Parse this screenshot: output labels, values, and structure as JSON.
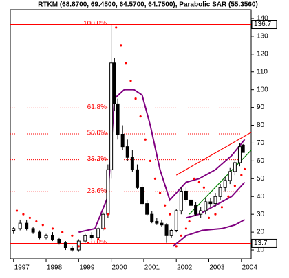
{
  "chart_data": {
    "type": "candlestick",
    "title": "RTKM (68.8700, 69.4500, 64.5700, 64.7500), Parabolic SAR (55.3560)",
    "xlim": [
      1996.9,
      2004.3
    ],
    "xticks": [
      1997,
      1998,
      1999,
      2000,
      2001,
      2002,
      2003,
      2004
    ],
    "ylim": [
      5,
      145
    ],
    "yticks": [
      10,
      20,
      30,
      40,
      50,
      60,
      70,
      80,
      90,
      100,
      110,
      120,
      130,
      140
    ],
    "candles": {
      "x": [
        1997.0,
        1997.2,
        1997.4,
        1997.6,
        1997.8,
        1998.0,
        1998.2,
        1998.4,
        1998.6,
        1998.8,
        1999.0,
        1999.2,
        1999.4,
        1999.6,
        1999.75,
        1999.9,
        2000.0,
        2000.1,
        2000.2,
        2000.35,
        2000.5,
        2000.65,
        2000.8,
        2000.95,
        2001.1,
        2001.25,
        2001.4,
        2001.55,
        2001.7,
        2001.85,
        2002.0,
        2002.15,
        2002.3,
        2002.45,
        2002.6,
        2002.75,
        2002.9,
        2003.05,
        2003.2,
        2003.35,
        2003.5,
        2003.65,
        2003.8,
        2003.95,
        2004.05
      ],
      "open": [
        21,
        22,
        25,
        22,
        20,
        17,
        18,
        16,
        14,
        11,
        10,
        15,
        18,
        17,
        22,
        30,
        55,
        115,
        92,
        75,
        68,
        62,
        55,
        45,
        36,
        30,
        26,
        25,
        24,
        18,
        21,
        32,
        43,
        38,
        35,
        30,
        32,
        37,
        36,
        40,
        45,
        49,
        54,
        59,
        68.87
      ],
      "high": [
        23,
        27,
        27,
        23,
        21,
        19,
        20,
        17,
        15,
        12,
        16,
        19,
        20,
        23,
        31,
        58,
        136.7,
        118,
        95,
        80,
        72,
        66,
        58,
        47,
        38,
        32,
        28,
        27,
        25,
        22,
        33,
        45,
        45,
        40,
        37,
        34,
        39,
        39,
        42,
        47,
        51,
        56,
        61,
        70,
        69.45
      ],
      "low": [
        19,
        21,
        21,
        19,
        16,
        16,
        15,
        13,
        10,
        9,
        9,
        14,
        16,
        16,
        21,
        28,
        50,
        88,
        72,
        66,
        60,
        54,
        44,
        34,
        29,
        25,
        24,
        23,
        14,
        17,
        20,
        30,
        37,
        34,
        29,
        28,
        30,
        34,
        34,
        38,
        43,
        47,
        52,
        57,
        64.57
      ],
      "close": [
        22,
        25,
        22,
        20,
        17,
        18,
        16,
        14,
        11,
        10,
        15,
        18,
        17,
        22,
        30,
        55,
        115,
        92,
        75,
        68,
        62,
        55,
        45,
        36,
        30,
        26,
        25,
        24,
        18,
        21,
        32,
        43,
        38,
        35,
        30,
        32,
        37,
        36,
        40,
        45,
        49,
        54,
        59,
        68,
        64.75
      ]
    },
    "sar": {
      "name": "Parabolic SAR",
      "color": "#ff0000",
      "x": [
        1997.1,
        1997.3,
        1997.5,
        1997.7,
        1997.9,
        1998.2,
        1998.5,
        1998.8,
        1999.0,
        1999.3,
        1999.6,
        1999.8,
        1999.9,
        2000.15,
        2000.3,
        2000.45,
        2000.6,
        2000.75,
        2000.9,
        2001.05,
        2001.2,
        2001.35,
        2001.5,
        2001.65,
        2001.8,
        2002.0,
        2002.15,
        2002.3,
        2002.4,
        2002.55,
        2002.7,
        2002.85,
        2003.0,
        2003.2,
        2003.4,
        2003.6,
        2003.8,
        2004.0,
        2004.1
      ],
      "values": [
        32,
        30,
        28,
        26,
        24,
        22,
        20,
        18,
        12,
        14,
        16,
        22,
        30,
        135,
        125,
        115,
        105,
        95,
        85,
        72,
        60,
        50,
        42,
        35,
        30,
        12,
        18,
        22,
        26,
        50,
        48,
        45,
        28,
        30,
        34,
        40,
        46,
        52,
        55.356
      ]
    },
    "bands": [
      {
        "color": "#800080",
        "x": [
          1999.0,
          1999.5,
          1999.9,
          2000.1,
          2000.4,
          2000.7,
          2000.95,
          2001.2,
          2001.5,
          2001.8,
          2002.0,
          2002.3,
          2002.7,
          2003.2,
          2003.7,
          2004.1
        ],
        "values": [
          20,
          22,
          40,
          95,
          100,
          100,
          97,
          80,
          55,
          38,
          42,
          48,
          50,
          55,
          63,
          72
        ]
      },
      {
        "color": "#800080",
        "x": [
          2002.3,
          2002.7,
          2003.2,
          2003.7,
          2004.1
        ],
        "values": [
          28,
          30,
          35,
          40,
          48
        ]
      },
      {
        "color": "#800080",
        "x": [
          2001.9,
          2002.3,
          2002.8,
          2003.4,
          2003.8,
          2004.1
        ],
        "values": [
          12,
          18,
          21,
          22,
          24,
          27
        ]
      }
    ],
    "trendlines": [
      {
        "color": "#ff0000",
        "x": [
          2002.0,
          2004.3
        ],
        "values": [
          52,
          76
        ]
      },
      {
        "color": "#008000",
        "x": [
          2002.4,
          2004.3
        ],
        "values": [
          30,
          66
        ]
      }
    ],
    "fib_levels": [
      {
        "label": "100.0%",
        "value": 136.7
      },
      {
        "label": "61.8%",
        "value": 89.7
      },
      {
        "label": "50.0%",
        "value": 75.2
      },
      {
        "label": "38.2%",
        "value": 60.7
      },
      {
        "label": "23.6%",
        "value": 42.7
      },
      {
        "label": "0.0%",
        "value": 13.7
      }
    ],
    "fib_color": "#ff0000"
  }
}
